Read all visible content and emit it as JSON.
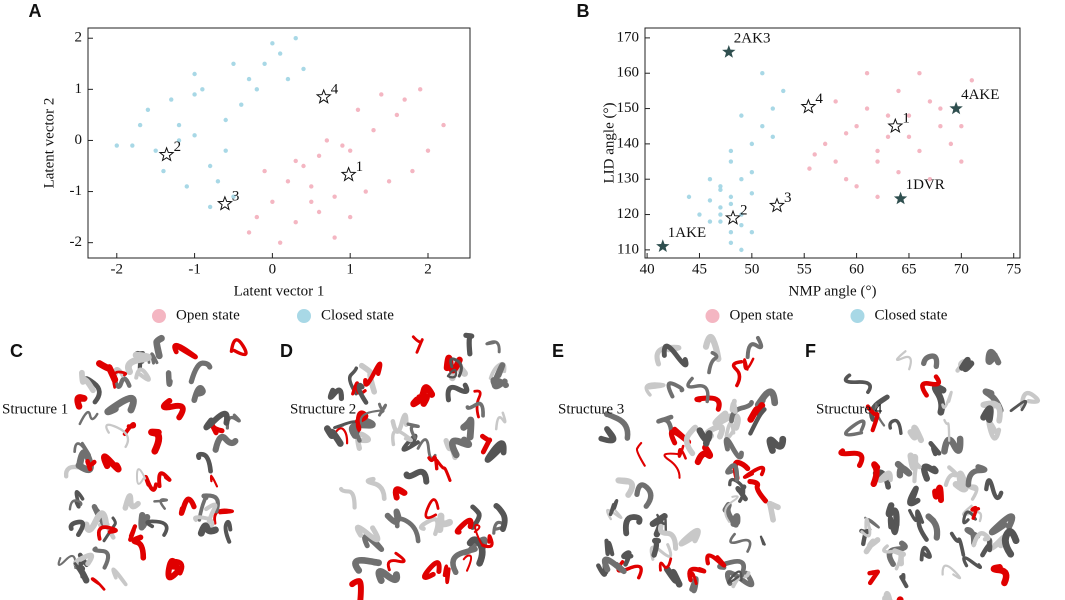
{
  "chart_data": [
    {
      "type": "scatter",
      "panel_label": "A",
      "xlabel": "Latent vector 1",
      "ylabel": "Latent vector 2",
      "xlim": [
        -2.37,
        2.54
      ],
      "ylim": [
        -2.3,
        2.2
      ],
      "xticks": [
        -2,
        -1,
        0,
        1,
        2
      ],
      "yticks": [
        -2,
        -1,
        0,
        1,
        2
      ],
      "series": [
        {
          "name": "Open state",
          "color": "#f4b6c2",
          "x": [
            0.1,
            0.3,
            0.5,
            0.8,
            1.0,
            1.2,
            1.5,
            1.8,
            2.0,
            2.2,
            0.4,
            0.6,
            0.9,
            1.3,
            1.6,
            0.0,
            -0.2,
            -0.3,
            0.2,
            0.5,
            0.7,
            1.1,
            1.4,
            0.3,
            0.8,
            1.7,
            -0.1,
            0.6,
            1.0,
            1.9
          ],
          "y": [
            -2.0,
            -1.6,
            -1.2,
            -1.9,
            -1.5,
            -1.0,
            -0.8,
            -0.6,
            -0.2,
            0.3,
            -0.5,
            -0.3,
            -0.1,
            0.2,
            0.5,
            -1.2,
            -1.5,
            -1.8,
            -0.8,
            -0.9,
            0.0,
            0.6,
            0.9,
            -0.4,
            -1.1,
            0.8,
            -0.6,
            -1.4,
            -0.2,
            1.0
          ]
        },
        {
          "name": "Closed state",
          "color": "#a8d8e6",
          "x": [
            -2.0,
            -1.8,
            -1.5,
            -1.2,
            -1.0,
            -0.8,
            -1.6,
            -1.3,
            -1.0,
            -0.7,
            -0.5,
            -1.4,
            -1.1,
            -0.8,
            -0.6,
            -0.3,
            -0.1,
            0.0,
            0.1,
            0.3,
            0.4,
            -0.9,
            -1.2,
            -0.4,
            -0.2,
            -1.7,
            -0.6,
            -1.0,
            0.2,
            -0.5
          ],
          "y": [
            -0.1,
            -0.1,
            -0.2,
            0.0,
            0.1,
            -0.5,
            0.6,
            0.8,
            0.9,
            -0.8,
            -1.1,
            -0.6,
            -0.9,
            -1.3,
            0.4,
            1.2,
            1.5,
            1.9,
            1.7,
            2.0,
            1.4,
            1.0,
            0.3,
            0.7,
            1.0,
            0.3,
            -0.2,
            1.3,
            1.2,
            1.5
          ]
        }
      ],
      "structures": {
        "labels": [
          "1",
          "2",
          "3",
          "4"
        ],
        "x": [
          0.98,
          -1.36,
          -0.61,
          0.66
        ],
        "y": [
          -0.67,
          -0.28,
          -1.24,
          0.85
        ]
      }
    },
    {
      "type": "scatter",
      "panel_label": "B",
      "xlabel": "NMP angle (°)",
      "ylabel": "LID angle (°)",
      "xlim": [
        39.8,
        75.6
      ],
      "ylim": [
        107.7,
        172.8
      ],
      "xticks": [
        40,
        45,
        50,
        55,
        60,
        65,
        70,
        75
      ],
      "yticks": [
        110,
        120,
        130,
        140,
        150,
        160,
        170
      ],
      "series": [
        {
          "name": "Open state",
          "color": "#f4b6c2",
          "x": [
            57,
            58,
            59,
            60,
            61,
            62,
            63,
            64,
            65,
            66,
            67,
            68,
            69,
            70,
            71,
            60,
            62,
            64,
            66,
            58,
            61,
            63,
            65,
            67,
            59,
            56,
            55.5,
            68,
            70,
            62
          ],
          "y": [
            140,
            135,
            130,
            145,
            150,
            138,
            142,
            155,
            148,
            160,
            152,
            145,
            140,
            135,
            158,
            128,
            125,
            132,
            138,
            152,
            160,
            148,
            142,
            130,
            143,
            137,
            133,
            150,
            145,
            135
          ]
        },
        {
          "name": "Closed state",
          "color": "#a8d8e6",
          "x": [
            46,
            47,
            48,
            49,
            50,
            47,
            48,
            49,
            46,
            48,
            50,
            51,
            52,
            53,
            49,
            48,
            47,
            50,
            51,
            49,
            45,
            44,
            48,
            47,
            46,
            52,
            50,
            48,
            49,
            47
          ],
          "y": [
            118,
            122,
            125,
            120,
            115,
            128,
            112,
            130,
            124,
            135,
            140,
            145,
            150,
            155,
            148,
            138,
            120,
            126,
            160,
            117,
            120,
            125,
            123,
            118,
            130,
            142,
            132,
            115,
            110,
            127
          ]
        }
      ],
      "structures": {
        "labels": [
          "1",
          "2",
          "3",
          "4"
        ],
        "x": [
          63.7,
          48.2,
          52.4,
          55.4
        ],
        "y": [
          145,
          119,
          122.5,
          150.5
        ]
      },
      "references": {
        "color": "#2f4f4f",
        "labels": [
          "2AK3",
          "4AKE",
          "1DVR",
          "1AKE"
        ],
        "x": [
          47.8,
          69.5,
          64.2,
          41.5
        ],
        "y": [
          166,
          150,
          124.5,
          111
        ]
      }
    }
  ],
  "structure_panels": [
    {
      "label": "C",
      "title": "Structure 1"
    },
    {
      "label": "D",
      "title": "Structure 2"
    },
    {
      "label": "E",
      "title": "Structure 3"
    },
    {
      "label": "F",
      "title": "Structure 4"
    }
  ]
}
